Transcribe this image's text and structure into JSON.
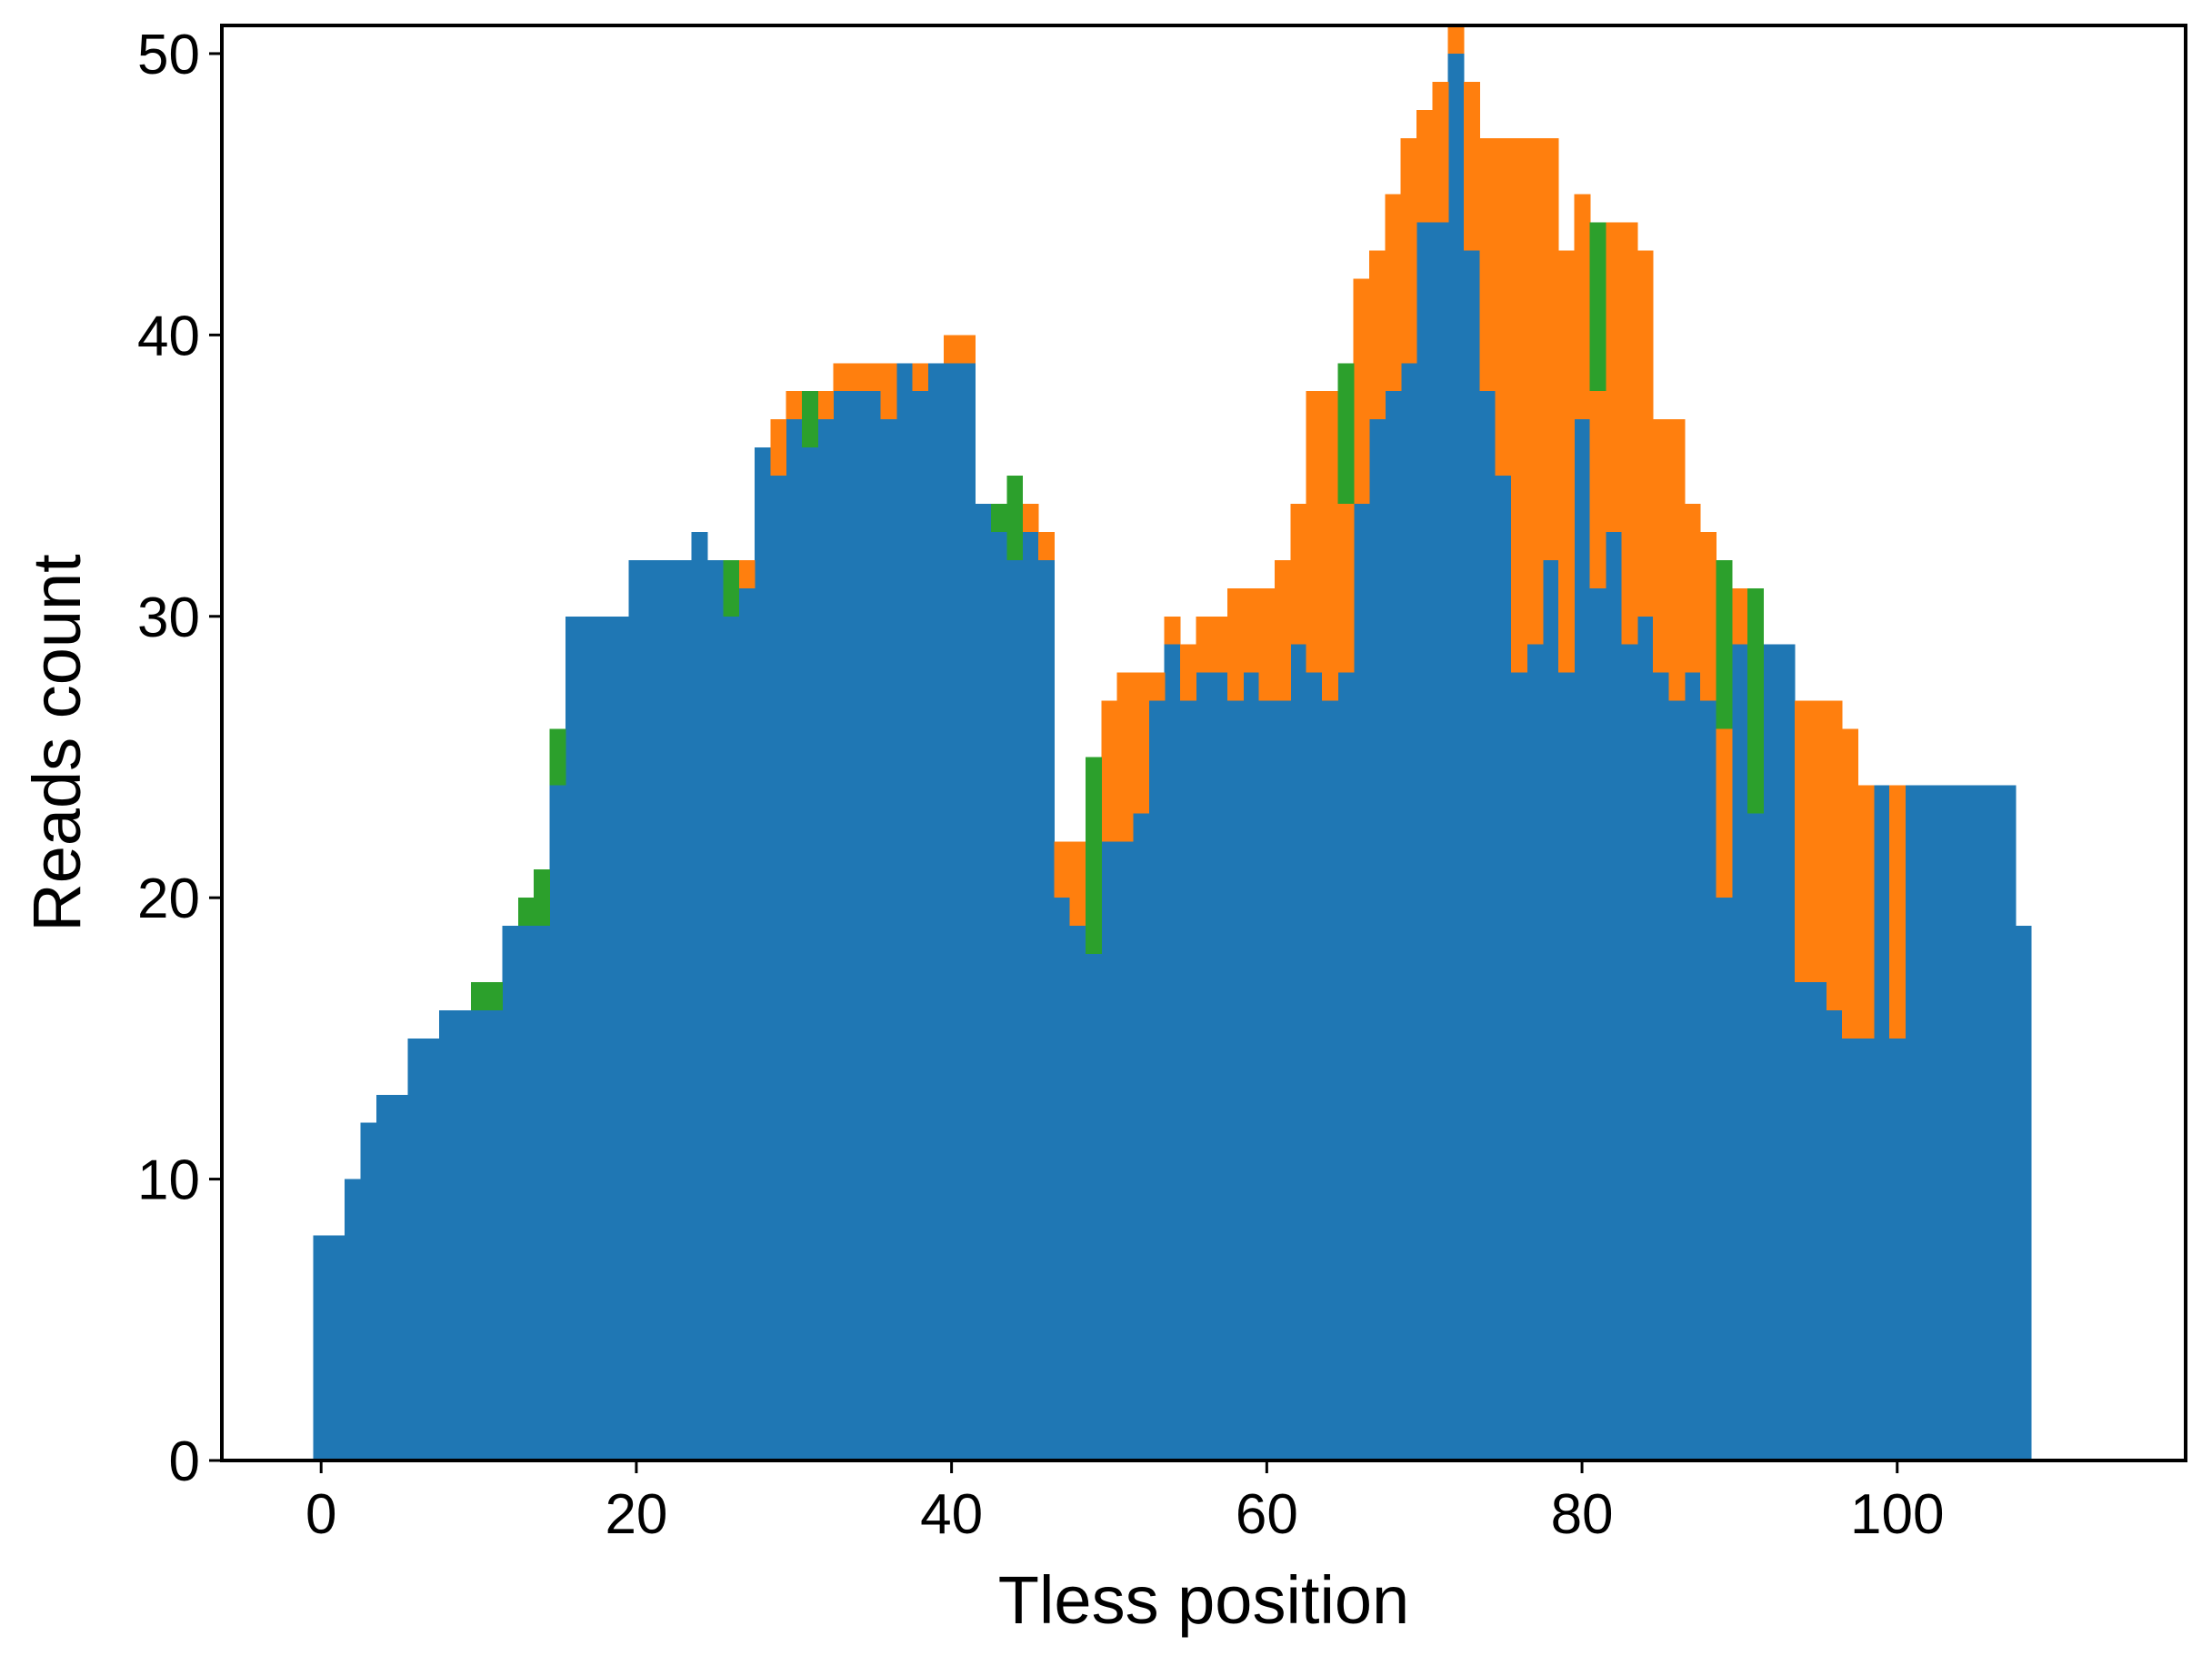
{
  "chart_data": {
    "type": "bar",
    "stacked": true,
    "x_label": "Tless position",
    "y_label": "Reads count",
    "x": [
      0,
      1,
      2,
      3,
      4,
      5,
      6,
      7,
      8,
      9,
      10,
      11,
      12,
      13,
      14,
      15,
      16,
      17,
      18,
      19,
      20,
      21,
      22,
      23,
      24,
      25,
      26,
      27,
      28,
      29,
      30,
      31,
      32,
      33,
      34,
      35,
      36,
      37,
      38,
      39,
      40,
      41,
      42,
      43,
      44,
      45,
      46,
      47,
      48,
      49,
      50,
      51,
      52,
      53,
      54,
      55,
      56,
      57,
      58,
      59,
      60,
      61,
      62,
      63,
      64,
      65,
      66,
      67,
      68,
      69,
      70,
      71,
      72,
      73,
      74,
      75,
      76,
      77,
      78,
      79,
      80,
      81,
      82,
      83,
      84,
      85,
      86,
      87,
      88,
      89,
      90,
      91,
      92,
      93,
      94,
      95,
      96,
      97,
      98,
      99,
      100,
      101,
      102,
      103,
      104,
      105,
      106,
      107,
      108
    ],
    "series": [
      {
        "color": "#1f77b4",
        "values": [
          8,
          8,
          10,
          12,
          13,
          13,
          15,
          15,
          16,
          16,
          16,
          16,
          19,
          19,
          19,
          24,
          30,
          30,
          30,
          30,
          32,
          32,
          32,
          32,
          33,
          32,
          30,
          31,
          36,
          35,
          37,
          36,
          37,
          38,
          38,
          38,
          37,
          39,
          38,
          39,
          39,
          39,
          34,
          33,
          32,
          33,
          32,
          20,
          19,
          18,
          22,
          22,
          23,
          27,
          29,
          27,
          28,
          28,
          27,
          28,
          27,
          27,
          29,
          28,
          27,
          28,
          34,
          37,
          38,
          39,
          44,
          44,
          50,
          43,
          38,
          35,
          28,
          29,
          32,
          28,
          37,
          31,
          33,
          29,
          30,
          28,
          27,
          28,
          27,
          20,
          29,
          23,
          29,
          29,
          17,
          17,
          16,
          15,
          15,
          24,
          15,
          24,
          24,
          24,
          24,
          24,
          24,
          24,
          19
        ]
      },
      {
        "color": "#ff7f0e",
        "values": [
          0,
          0,
          0,
          0,
          0,
          0,
          0,
          0,
          0,
          0,
          0,
          0,
          0,
          0,
          0,
          0,
          0,
          0,
          0,
          0,
          0,
          0,
          0,
          0,
          0,
          0,
          0,
          1,
          0,
          2,
          1,
          0,
          1,
          1,
          1,
          1,
          2,
          0,
          1,
          0,
          1,
          1,
          0,
          0,
          0,
          1,
          1,
          2,
          3,
          0,
          5,
          6,
          5,
          1,
          1,
          2,
          2,
          2,
          4,
          3,
          4,
          5,
          5,
          10,
          11,
          6,
          8,
          6,
          7,
          8,
          4,
          5,
          1,
          6,
          9,
          12,
          19,
          18,
          15,
          15,
          8,
          7,
          11,
          15,
          13,
          9,
          10,
          6,
          6,
          6,
          2,
          0,
          0,
          0,
          10,
          10,
          11,
          11,
          9,
          0,
          9,
          0,
          0,
          0,
          0,
          0,
          0,
          0,
          0
        ]
      },
      {
        "color": "#2ca02c",
        "values": [
          0,
          0,
          0,
          0,
          0,
          0,
          0,
          0,
          0,
          0,
          1,
          1,
          0,
          1,
          2,
          2,
          0,
          0,
          0,
          0,
          0,
          0,
          0,
          0,
          0,
          0,
          2,
          0,
          0,
          0,
          0,
          2,
          0,
          0,
          0,
          0,
          0,
          0,
          0,
          0,
          0,
          0,
          0,
          1,
          3,
          0,
          0,
          0,
          0,
          7,
          0,
          0,
          0,
          0,
          0,
          0,
          0,
          0,
          0,
          0,
          0,
          0,
          0,
          0,
          0,
          5,
          0,
          0,
          0,
          0,
          0,
          0,
          0,
          0,
          0,
          0,
          0,
          0,
          0,
          0,
          0,
          6,
          0,
          0,
          0,
          0,
          0,
          0,
          0,
          6,
          0,
          8,
          0,
          0,
          0,
          0,
          0,
          0,
          0,
          0,
          0,
          0,
          0,
          0,
          0,
          0,
          0,
          0,
          0
        ]
      }
    ],
    "xlim": [
      -6.3,
      118.3
    ],
    "ylim": [
      0,
      51
    ],
    "xticks": [
      0,
      20,
      40,
      60,
      80,
      100
    ],
    "yticks": [
      0,
      10,
      20,
      30,
      40,
      50
    ],
    "grid": false
  }
}
